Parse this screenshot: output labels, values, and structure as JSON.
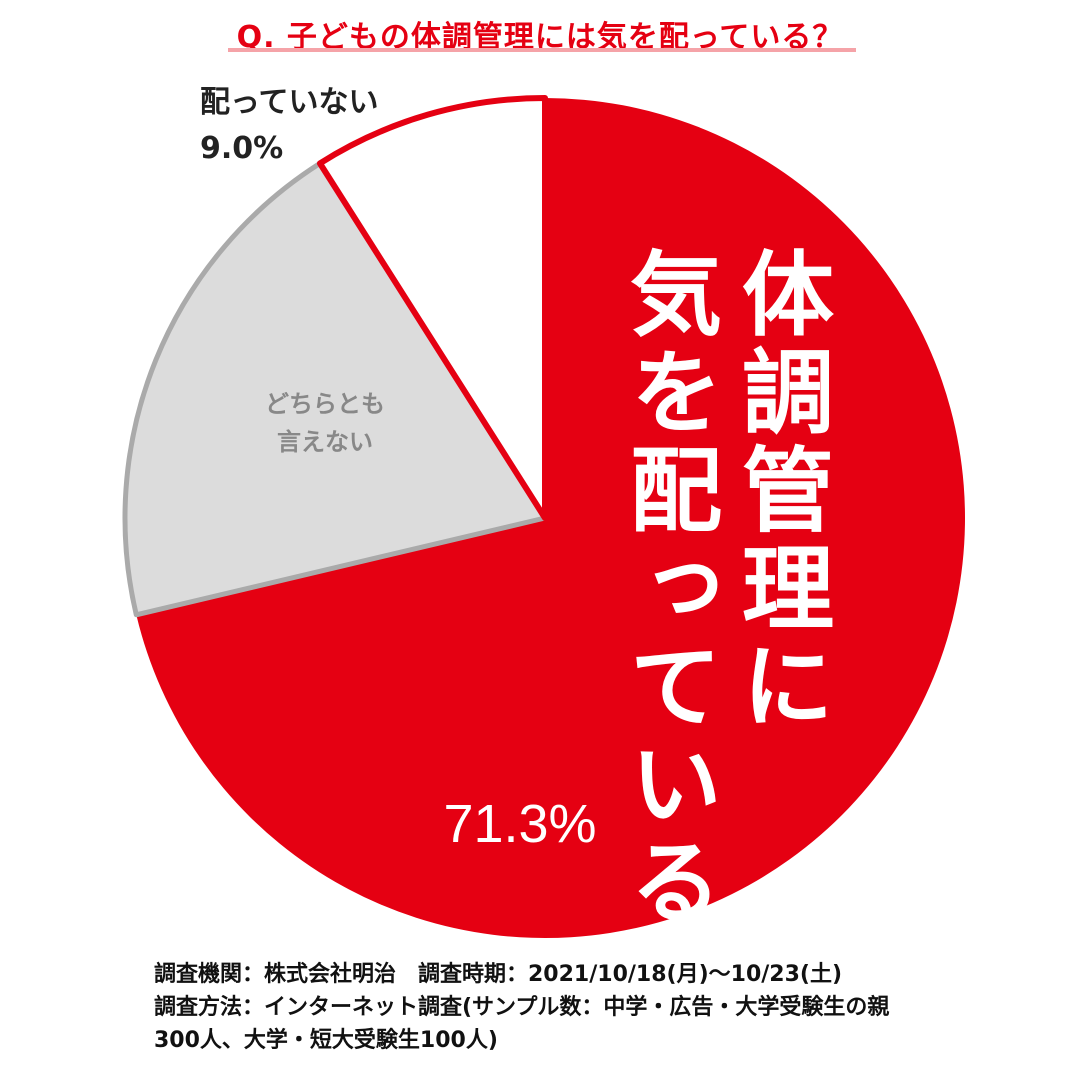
{
  "title": "Q. 子どもの体調管理には気を配っている？",
  "chart_data": {
    "type": "pie",
    "slices": [
      {
        "label": "体調管理に気を配っている",
        "value": 71.3,
        "value_label": "71.3%",
        "color": "#e50012"
      },
      {
        "label": "どちらとも言えない",
        "value": 19.7,
        "value_label": "",
        "color": "#dcdcdc"
      },
      {
        "label": "配っていない",
        "value": 9.0,
        "value_label": "9.0%",
        "color": "#ffffff"
      }
    ],
    "slice_labels": {
      "main_col1": "体調管理に",
      "main_col2": "気を配っている",
      "main_value": "71.3%",
      "neutral_line1": "どちらとも",
      "neutral_line2": "言えない",
      "not_label": "配っていない",
      "not_value": "9.0%"
    }
  },
  "footer": {
    "line1": "調査機関：株式会社明治　調査時期：2021/10/18(月)〜10/23(土)",
    "line2": "調査方法：インターネット調査(サンプル数：中学・広告・大学受験生の親",
    "line3": "300人、大学・短大受験生100人)"
  }
}
